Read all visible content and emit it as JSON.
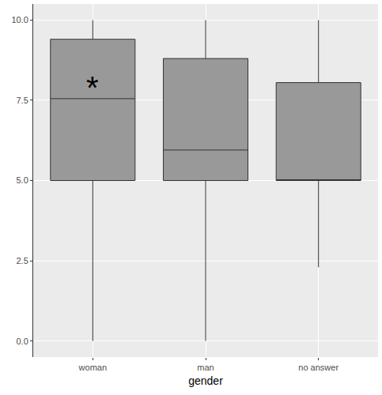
{
  "chart_data": {
    "type": "box",
    "x_label": "gender",
    "categories": [
      "woman",
      "man",
      "no answer"
    ],
    "min": [
      0,
      0,
      2.3
    ],
    "q1": [
      5,
      5,
      5
    ],
    "median": [
      7.55,
      5.95,
      5.02
    ],
    "q3": [
      9.4,
      8.8,
      8.05
    ],
    "max": [
      10,
      10,
      10
    ],
    "color": "#999999",
    "ylim": [
      -0.5,
      10.5
    ],
    "yticks": [
      {
        "value": 0,
        "label": "0.0"
      },
      {
        "value": 2.5,
        "label": "2.5"
      },
      {
        "value": 5,
        "label": "5.0"
      },
      {
        "value": 7.5,
        "label": "7.5"
      },
      {
        "value": 10,
        "label": "10.0"
      }
    ],
    "grid": true,
    "annotations": [
      {
        "text": "*",
        "category": "woman",
        "y": 7.9
      }
    ]
  }
}
